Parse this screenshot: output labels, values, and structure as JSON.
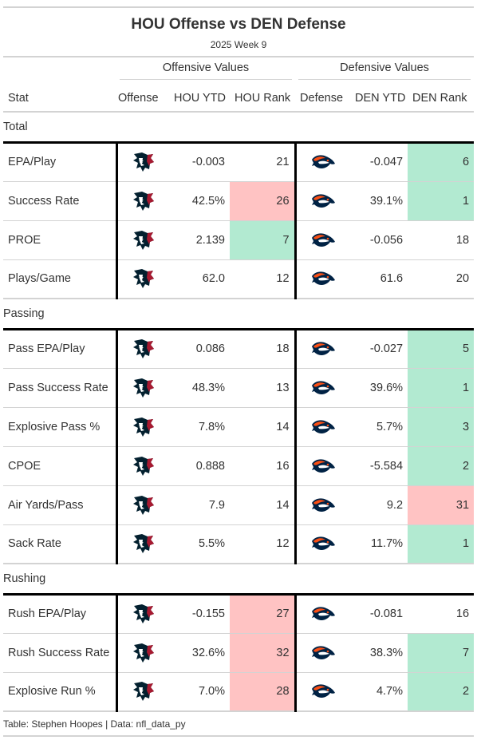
{
  "header": {
    "title": "HOU Offense vs DEN Defense",
    "subtitle": "2025 Week 9"
  },
  "spanners": {
    "offense": "Offensive Values",
    "defense": "Defensive Values"
  },
  "columns": {
    "stat": "Stat",
    "offense": "Offense",
    "off_ytd": "HOU YTD",
    "off_rank": "HOU Rank",
    "defense": "Defense",
    "def_ytd": "DEN YTD",
    "def_rank": "DEN Rank"
  },
  "colors": {
    "good_rank": "#b2ead1",
    "bad_rank": "#ffc3c3",
    "texans_navy": "#03202f",
    "texans_red": "#a71930",
    "broncos_orange": "#fb4f14",
    "broncos_navy": "#002244"
  },
  "icons": {
    "offense_logo": "texans-logo-icon",
    "defense_logo": "broncos-logo-icon"
  },
  "groups": [
    {
      "label": "Total",
      "rows": [
        {
          "stat": "EPA/Play",
          "off_ytd": "-0.003",
          "off_rank": "21",
          "off_hl": "",
          "def_ytd": "-0.047",
          "def_rank": "6",
          "def_hl": "good"
        },
        {
          "stat": "Success Rate",
          "off_ytd": "42.5%",
          "off_rank": "26",
          "off_hl": "bad",
          "def_ytd": "39.1%",
          "def_rank": "1",
          "def_hl": "good"
        },
        {
          "stat": "PROE",
          "off_ytd": "2.139",
          "off_rank": "7",
          "off_hl": "good",
          "def_ytd": "-0.056",
          "def_rank": "18",
          "def_hl": ""
        },
        {
          "stat": "Plays/Game",
          "off_ytd": "62.0",
          "off_rank": "12",
          "off_hl": "",
          "def_ytd": "61.6",
          "def_rank": "20",
          "def_hl": ""
        }
      ]
    },
    {
      "label": "Passing",
      "rows": [
        {
          "stat": "Pass EPA/Play",
          "off_ytd": "0.086",
          "off_rank": "18",
          "off_hl": "",
          "def_ytd": "-0.027",
          "def_rank": "5",
          "def_hl": "good"
        },
        {
          "stat": "Pass Success Rate",
          "off_ytd": "48.3%",
          "off_rank": "13",
          "off_hl": "",
          "def_ytd": "39.6%",
          "def_rank": "1",
          "def_hl": "good"
        },
        {
          "stat": "Explosive Pass %",
          "off_ytd": "7.8%",
          "off_rank": "14",
          "off_hl": "",
          "def_ytd": "5.7%",
          "def_rank": "3",
          "def_hl": "good"
        },
        {
          "stat": "CPOE",
          "off_ytd": "0.888",
          "off_rank": "16",
          "off_hl": "",
          "def_ytd": "-5.584",
          "def_rank": "2",
          "def_hl": "good"
        },
        {
          "stat": "Air Yards/Pass",
          "off_ytd": "7.9",
          "off_rank": "14",
          "off_hl": "",
          "def_ytd": "9.2",
          "def_rank": "31",
          "def_hl": "bad"
        },
        {
          "stat": "Sack Rate",
          "off_ytd": "5.5%",
          "off_rank": "12",
          "off_hl": "",
          "def_ytd": "11.7%",
          "def_rank": "1",
          "def_hl": "good"
        }
      ]
    },
    {
      "label": "Rushing",
      "rows": [
        {
          "stat": "Rush EPA/Play",
          "off_ytd": "-0.155",
          "off_rank": "27",
          "off_hl": "bad",
          "def_ytd": "-0.081",
          "def_rank": "16",
          "def_hl": ""
        },
        {
          "stat": "Rush Success Rate",
          "off_ytd": "32.6%",
          "off_rank": "32",
          "off_hl": "bad",
          "def_ytd": "38.3%",
          "def_rank": "7",
          "def_hl": "good"
        },
        {
          "stat": "Explosive Run %",
          "off_ytd": "7.0%",
          "off_rank": "28",
          "off_hl": "bad",
          "def_ytd": "4.7%",
          "def_rank": "2",
          "def_hl": "good"
        }
      ]
    }
  ],
  "source_note": "Table: Stephen Hoopes | Data: nfl_data_py"
}
